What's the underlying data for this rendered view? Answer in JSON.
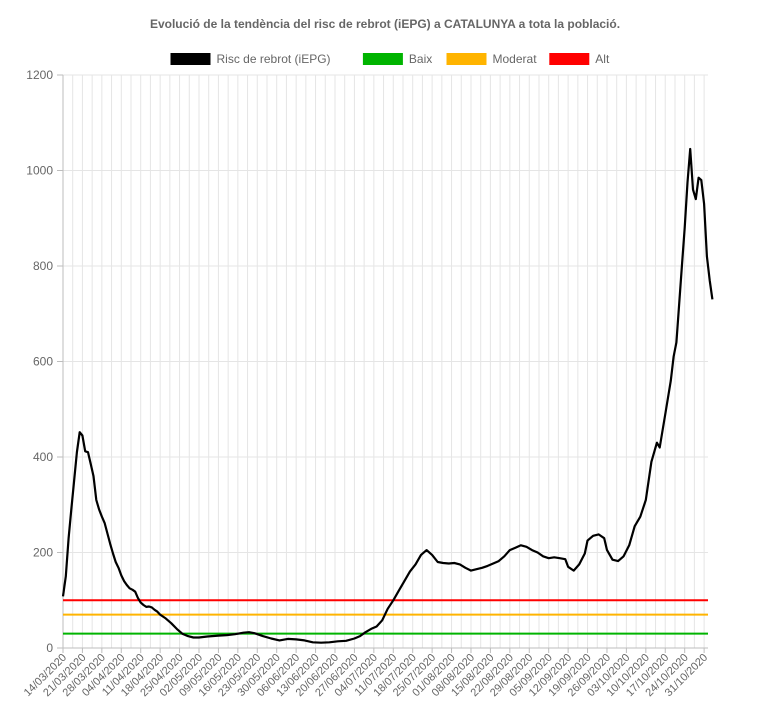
{
  "chart_data": {
    "type": "line",
    "title": "Evolució de la tendència del risc de rebrot (iEPG) a CATALUNYA a tota la població.",
    "xlabel": "",
    "ylabel": "",
    "ylim": [
      0,
      1200
    ],
    "yticks": [
      0,
      200,
      400,
      600,
      800,
      1000,
      1200
    ],
    "grid": true,
    "legend_position": "top",
    "x_tick_labels": [
      "14/03/2020",
      "21/03/2020",
      "28/03/2020",
      "04/04/2020",
      "11/04/2020",
      "18/04/2020",
      "25/04/2020",
      "02/05/2020",
      "09/05/2020",
      "16/05/2020",
      "23/05/2020",
      "30/05/2020",
      "06/06/2020",
      "13/06/2020",
      "20/06/2020",
      "27/06/2020",
      "04/07/2020",
      "11/07/2020",
      "18/07/2020",
      "25/07/2020",
      "01/08/2020",
      "08/08/2020",
      "15/08/2020",
      "22/08/2020",
      "29/08/2020",
      "05/09/2020",
      "12/09/2020",
      "19/09/2020",
      "26/09/2020",
      "03/10/2020",
      "10/10/2020",
      "17/10/2020",
      "24/10/2020",
      "31/10/2020"
    ],
    "x_start": "14/03/2020",
    "x_end": "31/10/2020",
    "series": [
      {
        "name": "Risc de rebrot (iEPG)",
        "color": "#000000",
        "points": [
          [
            "14/03/2020",
            108
          ],
          [
            "15/03/2020",
            150
          ],
          [
            "16/03/2020",
            230
          ],
          [
            "17/03/2020",
            290
          ],
          [
            "18/03/2020",
            350
          ],
          [
            "19/03/2020",
            410
          ],
          [
            "20/03/2020",
            452
          ],
          [
            "21/03/2020",
            445
          ],
          [
            "22/03/2020",
            412
          ],
          [
            "23/03/2020",
            410
          ],
          [
            "24/03/2020",
            385
          ],
          [
            "25/03/2020",
            360
          ],
          [
            "26/03/2020",
            310
          ],
          [
            "27/03/2020",
            290
          ],
          [
            "28/03/2020",
            275
          ],
          [
            "29/03/2020",
            262
          ],
          [
            "30/03/2020",
            240
          ],
          [
            "31/03/2020",
            218
          ],
          [
            "01/04/2020",
            198
          ],
          [
            "02/04/2020",
            180
          ],
          [
            "03/04/2020",
            168
          ],
          [
            "04/04/2020",
            152
          ],
          [
            "05/04/2020",
            140
          ],
          [
            "06/04/2020",
            132
          ],
          [
            "07/04/2020",
            125
          ],
          [
            "08/04/2020",
            122
          ],
          [
            "09/04/2020",
            118
          ],
          [
            "10/04/2020",
            105
          ],
          [
            "11/04/2020",
            95
          ],
          [
            "12/04/2020",
            90
          ],
          [
            "13/04/2020",
            86
          ],
          [
            "14/04/2020",
            87
          ],
          [
            "15/04/2020",
            85
          ],
          [
            "16/04/2020",
            80
          ],
          [
            "17/04/2020",
            76
          ],
          [
            "18/04/2020",
            70
          ],
          [
            "19/04/2020",
            66
          ],
          [
            "20/04/2020",
            62
          ],
          [
            "22/04/2020",
            52
          ],
          [
            "24/04/2020",
            40
          ],
          [
            "26/04/2020",
            30
          ],
          [
            "28/04/2020",
            25
          ],
          [
            "30/04/2020",
            22
          ],
          [
            "02/05/2020",
            22
          ],
          [
            "05/05/2020",
            24
          ],
          [
            "09/05/2020",
            26
          ],
          [
            "12/05/2020",
            27
          ],
          [
            "15/05/2020",
            29
          ],
          [
            "18/05/2020",
            32
          ],
          [
            "20/05/2020",
            33
          ],
          [
            "22/05/2020",
            31
          ],
          [
            "25/05/2020",
            25
          ],
          [
            "28/05/2020",
            20
          ],
          [
            "31/05/2020",
            16
          ],
          [
            "03/06/2020",
            19
          ],
          [
            "06/06/2020",
            18
          ],
          [
            "09/06/2020",
            16
          ],
          [
            "12/06/2020",
            12
          ],
          [
            "15/06/2020",
            11
          ],
          [
            "18/06/2020",
            12
          ],
          [
            "21/06/2020",
            14
          ],
          [
            "24/06/2020",
            15
          ],
          [
            "27/06/2020",
            20
          ],
          [
            "29/06/2020",
            25
          ],
          [
            "01/07/2020",
            33
          ],
          [
            "03/07/2020",
            40
          ],
          [
            "05/07/2020",
            45
          ],
          [
            "07/07/2020",
            58
          ],
          [
            "09/07/2020",
            82
          ],
          [
            "11/07/2020",
            100
          ],
          [
            "13/07/2020",
            120
          ],
          [
            "15/07/2020",
            140
          ],
          [
            "17/07/2020",
            160
          ],
          [
            "19/07/2020",
            175
          ],
          [
            "21/07/2020",
            195
          ],
          [
            "23/07/2020",
            205
          ],
          [
            "25/07/2020",
            195
          ],
          [
            "27/07/2020",
            180
          ],
          [
            "29/07/2020",
            178
          ],
          [
            "31/07/2020",
            177
          ],
          [
            "02/08/2020",
            178
          ],
          [
            "04/08/2020",
            175
          ],
          [
            "06/08/2020",
            168
          ],
          [
            "08/08/2020",
            162
          ],
          [
            "10/08/2020",
            165
          ],
          [
            "12/08/2020",
            168
          ],
          [
            "14/08/2020",
            172
          ],
          [
            "16/08/2020",
            177
          ],
          [
            "18/08/2020",
            182
          ],
          [
            "20/08/2020",
            192
          ],
          [
            "22/08/2020",
            205
          ],
          [
            "24/08/2020",
            210
          ],
          [
            "26/08/2020",
            215
          ],
          [
            "28/08/2020",
            212
          ],
          [
            "30/08/2020",
            205
          ],
          [
            "01/09/2020",
            200
          ],
          [
            "03/09/2020",
            192
          ],
          [
            "05/09/2020",
            188
          ],
          [
            "07/09/2020",
            190
          ],
          [
            "09/09/2020",
            188
          ],
          [
            "11/09/2020",
            186
          ],
          [
            "12/09/2020",
            170
          ],
          [
            "14/09/2020",
            162
          ],
          [
            "16/09/2020",
            175
          ],
          [
            "18/09/2020",
            198
          ],
          [
            "19/09/2020",
            225
          ],
          [
            "21/09/2020",
            235
          ],
          [
            "23/09/2020",
            238
          ],
          [
            "25/09/2020",
            230
          ],
          [
            "26/09/2020",
            205
          ],
          [
            "28/09/2020",
            185
          ],
          [
            "30/09/2020",
            182
          ],
          [
            "02/10/2020",
            192
          ],
          [
            "04/10/2020",
            215
          ],
          [
            "06/10/2020",
            255
          ],
          [
            "08/10/2020",
            275
          ],
          [
            "10/10/2020",
            310
          ],
          [
            "12/10/2020",
            390
          ],
          [
            "14/10/2020",
            430
          ],
          [
            "15/10/2020",
            420
          ],
          [
            "17/10/2020",
            490
          ],
          [
            "19/10/2020",
            560
          ],
          [
            "20/10/2020",
            610
          ],
          [
            "21/10/2020",
            640
          ],
          [
            "23/10/2020",
            800
          ],
          [
            "24/10/2020",
            880
          ],
          [
            "25/10/2020",
            975
          ],
          [
            "26/10/2020",
            1045
          ],
          [
            "27/10/2020",
            960
          ],
          [
            "28/10/2020",
            940
          ],
          [
            "29/10/2020",
            985
          ],
          [
            "30/10/2020",
            980
          ],
          [
            "31/10/2020",
            930
          ],
          [
            "01/11/2020",
            820
          ],
          [
            "02/11/2020",
            770
          ],
          [
            "03/11/2020",
            730
          ]
        ]
      },
      {
        "name": "Baix",
        "color": "#00b400",
        "value": 30
      },
      {
        "name": "Moderat",
        "color": "#ffb400",
        "value": 70
      },
      {
        "name": "Alt",
        "color": "#ff0000",
        "value": 100
      }
    ]
  }
}
